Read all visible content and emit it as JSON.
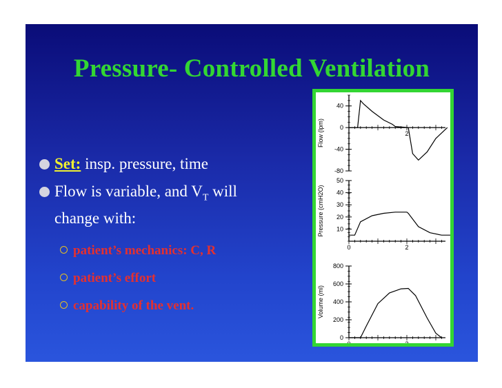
{
  "slide": {
    "title": "Pressure- Controlled Ventilation",
    "bullets": [
      {
        "label": "Set:",
        "text": " insp. pressure, time"
      },
      {
        "text": "Flow is variable, and V",
        "sub": "T",
        "text2": " will"
      },
      {
        "text": "change with:"
      }
    ],
    "sub_bullets": [
      "patient’s mechanics: C, R",
      "patient’s effort",
      "capability of the vent."
    ],
    "colors": {
      "title": "#33d633",
      "sub_bullets": "#e43030",
      "bg_top": "#0a0c78",
      "bg_bottom": "#2a55dd"
    }
  },
  "chart_data": [
    {
      "type": "line",
      "ylabel": "Flow (lpm)",
      "yticks": [
        "40",
        "0",
        "-40",
        "-80"
      ],
      "xticks": [
        "2"
      ],
      "ylim": [
        -80,
        60
      ],
      "x": [
        0,
        0.3,
        0.4,
        0.5,
        0.8,
        1.2,
        1.5,
        1.6,
        2.05,
        2.2,
        2.4,
        2.7,
        3.0,
        3.4
      ],
      "y": [
        0,
        0,
        50,
        44,
        30,
        14,
        6,
        2,
        0,
        -48,
        -60,
        -45,
        -20,
        0
      ]
    },
    {
      "type": "line",
      "ylabel": "Pressure (cmH2O)",
      "yticks": [
        "50",
        "40",
        "30",
        "20",
        "10"
      ],
      "xticks": [
        "0",
        "2"
      ],
      "ylim": [
        0,
        50
      ],
      "x": [
        0,
        0.2,
        0.4,
        0.8,
        1.2,
        1.6,
        2.0,
        2.05,
        2.4,
        2.8,
        3.2,
        3.6
      ],
      "y": [
        5,
        5,
        16,
        21,
        23,
        24,
        24,
        23,
        12,
        7,
        5,
        5
      ]
    },
    {
      "type": "line",
      "ylabel": "Volume (ml)",
      "yticks": [
        "800",
        "600",
        "400",
        "200",
        "0"
      ],
      "xticks": [
        "0",
        "2"
      ],
      "ylim": [
        0,
        800
      ],
      "x": [
        0,
        0.4,
        0.6,
        1.0,
        1.4,
        1.8,
        2.05,
        2.3,
        2.7,
        3.0,
        3.2
      ],
      "y": [
        0,
        0,
        130,
        380,
        500,
        545,
        550,
        470,
        220,
        50,
        0
      ]
    }
  ]
}
